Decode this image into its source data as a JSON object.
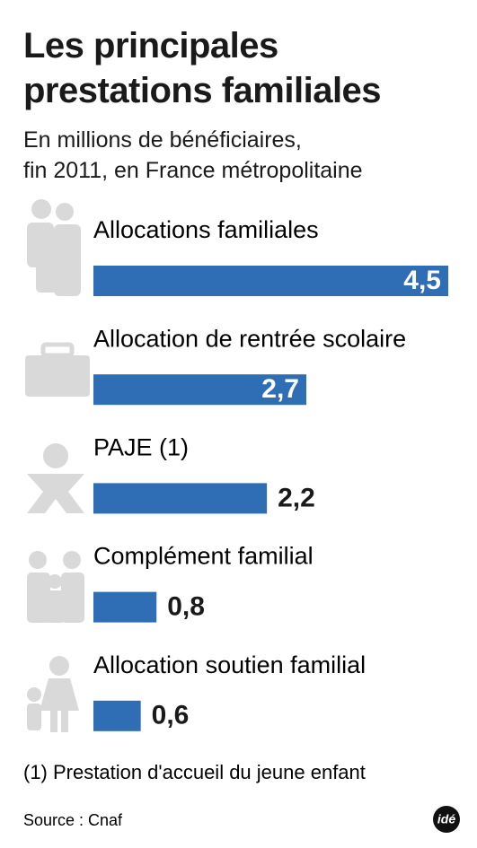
{
  "chart_data": {
    "type": "hbar",
    "title": [
      "Les principales",
      "prestations familiales"
    ],
    "subtitle": [
      "En millions de bénéficiaires,",
      "fin 2011, en France métropolitaine"
    ],
    "categories": [
      "Allocations familiales",
      "Allocation de rentrée scolaire",
      "PAJE (1)",
      "Complément familial",
      "Allocation soutien familial"
    ],
    "values": [
      4.5,
      2.7,
      2.2,
      0.8,
      0.6
    ],
    "value_labels": [
      "4,5",
      "2,7",
      "2,2",
      "0,8",
      "0,6"
    ],
    "color": "#2f6db5",
    "note": "(1) Prestation d'accueil du jeune enfant",
    "source": "Source : Cnaf",
    "logo": "idé"
  }
}
